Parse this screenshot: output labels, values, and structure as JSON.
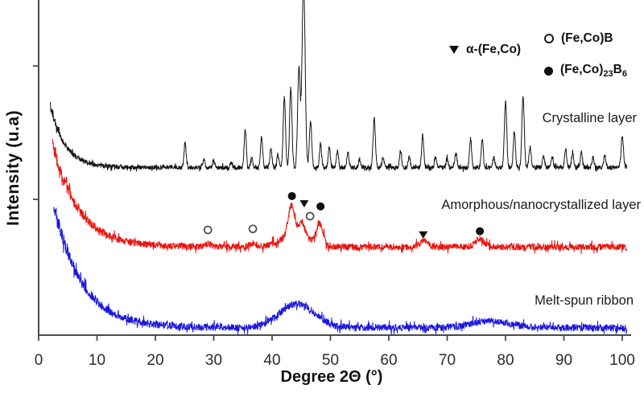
{
  "chart_data": {
    "type": "line",
    "subtype": "xrd-diffraction-pattern",
    "title": "",
    "xlabel": "Degree 2Θ (°)",
    "ylabel": "Intensity (u.a)",
    "x_range": [
      0,
      100
    ],
    "x_ticks": [
      0,
      10,
      20,
      30,
      40,
      50,
      60,
      70,
      80,
      90,
      100
    ],
    "y_ticks_values": [
      80.3,
      40.5
    ],
    "y_axis_note": "arbitrary units, unlabeled axis; curves vertically offset; values below are % of plot height",
    "legend_position": "top-right inside plot",
    "grid": false,
    "series": [
      {
        "label": "Crystalline layer",
        "color": "#141414",
        "start_deg": 2.0,
        "end_deg": 100.8,
        "start_value": 69,
        "baseline": 50,
        "decay_tau": 2.5,
        "noise": 0.65,
        "peaks": [
          [
            25.1,
            7.5
          ],
          [
            28.3,
            2.5
          ],
          [
            30.0,
            2.0
          ],
          [
            33.0,
            1.5
          ],
          [
            35.4,
            11.5
          ],
          [
            36.5,
            3.0
          ],
          [
            38.2,
            9.0
          ],
          [
            39.8,
            5.5
          ],
          [
            41.0,
            4.0
          ],
          [
            42.1,
            21.0,
            0.2
          ],
          [
            43.2,
            24.0,
            0.2
          ],
          [
            44.6,
            29.5,
            0.22
          ],
          [
            45.4,
            56.0,
            0.26
          ],
          [
            46.6,
            14.0,
            0.2
          ],
          [
            48.3,
            7.0
          ],
          [
            49.8,
            6.0
          ],
          [
            51.2,
            5.0
          ],
          [
            53.0,
            4.5
          ],
          [
            55.0,
            2.5
          ],
          [
            57.5,
            14.5,
            0.2
          ],
          [
            59.0,
            3.0
          ],
          [
            62.0,
            5.0
          ],
          [
            63.5,
            3.0
          ],
          [
            65.8,
            9.7
          ],
          [
            68.0,
            3.0
          ],
          [
            70.0,
            2.5
          ],
          [
            71.5,
            4.5
          ],
          [
            74.0,
            8.5
          ],
          [
            76.0,
            8.5
          ],
          [
            78.0,
            3.0
          ],
          [
            80.0,
            19.5,
            0.2
          ],
          [
            81.5,
            11.0
          ],
          [
            83.0,
            21.5,
            0.2
          ],
          [
            84.2,
            6.0
          ],
          [
            86.5,
            3.5
          ],
          [
            88.0,
            3.0
          ],
          [
            90.3,
            5.5
          ],
          [
            91.5,
            4.0
          ],
          [
            93.0,
            5.0
          ],
          [
            95.0,
            3.0
          ],
          [
            97.0,
            3.5
          ],
          [
            100.0,
            9.5,
            0.2
          ]
        ]
      },
      {
        "label": "Amorphous/nanocrystallized layer",
        "color": "#e8140e",
        "start_deg": 2.4,
        "end_deg": 100.8,
        "start_value": 57,
        "baseline": 26.3,
        "decay_tau": 4.4,
        "noise": 1.0,
        "peaks": [
          [
            29.0,
            0.8,
            0.5
          ],
          [
            36.7,
            1.0,
            0.6
          ],
          [
            43.3,
            9.0,
            0.55
          ],
          [
            44.0,
            3.5,
            2.5
          ],
          [
            45.1,
            4.5,
            0.5
          ],
          [
            48.2,
            6.3,
            0.55
          ],
          [
            66.0,
            1.8,
            0.7
          ],
          [
            75.6,
            2.3,
            0.8
          ]
        ]
      },
      {
        "label": "Melt-spun ribbon",
        "color": "#1a17dd",
        "start_deg": 2.6,
        "end_deg": 100.8,
        "start_value": 39,
        "baseline": 2.2,
        "decay_tau": 4.8,
        "noise": 1.05,
        "peaks": [
          [
            44.3,
            7.2,
            3.0
          ],
          [
            77.5,
            2.0,
            3.5
          ]
        ]
      }
    ],
    "point_markers": [
      {
        "symbol": "circle-open",
        "phase": "(Fe,Co)B",
        "two_theta": 29.0,
        "y": 31.4
      },
      {
        "symbol": "circle-open",
        "phase": "(Fe,Co)B",
        "two_theta": 36.7,
        "y": 31.7
      },
      {
        "symbol": "circle-open",
        "phase": "(Fe,Co)B",
        "two_theta": 46.5,
        "y": 35.5
      },
      {
        "symbol": "circle-filled",
        "phase": "(Fe,Co)23B6",
        "two_theta": 43.4,
        "y": 41.5
      },
      {
        "symbol": "circle-filled",
        "phase": "(Fe,Co)23B6",
        "two_theta": 48.3,
        "y": 38.4
      },
      {
        "symbol": "circle-filled",
        "phase": "(Fe,Co)23B6",
        "two_theta": 75.6,
        "y": 31.0
      },
      {
        "symbol": "triangle-down",
        "phase": "alpha-(Fe,Co)",
        "two_theta": 45.5,
        "y": 39.3
      },
      {
        "symbol": "triangle-down",
        "phase": "alpha-(Fe,Co)",
        "two_theta": 65.9,
        "y": 30.0
      }
    ],
    "legend": [
      {
        "symbol": "triangle-down",
        "label": "α-(Fe,Co)"
      },
      {
        "symbol": "circle-open",
        "label": "(Fe,Co)B"
      },
      {
        "symbol": "circle-filled",
        "label": "(Fe,Co)23B6",
        "label_parts": {
          "p1": "(Fe,Co)",
          "sub1": "23",
          "p2": "B",
          "sub2": "6"
        }
      }
    ]
  }
}
